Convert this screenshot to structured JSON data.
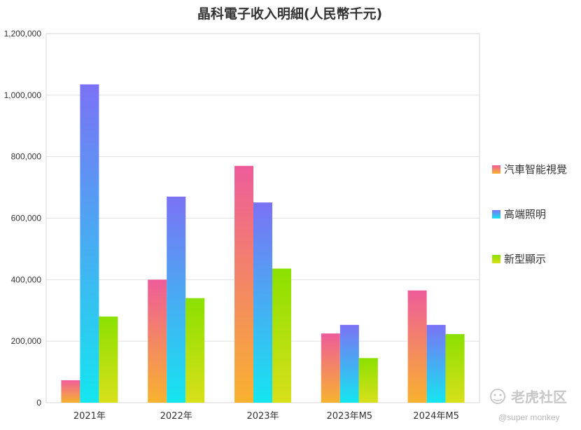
{
  "chart_data": {
    "type": "bar",
    "title": "晶科電子收入明細(人民幣千元)",
    "categories": [
      "2021年",
      "2022年",
      "2023年",
      "2023年M5",
      "2024年M5"
    ],
    "series": [
      {
        "name": "汽車智能視覺",
        "values": [
          73000,
          400000,
          770000,
          225000,
          365000
        ],
        "colors": {
          "top": "#ee5c9a",
          "bottom": "#f8b22f"
        }
      },
      {
        "name": "高端照明",
        "values": [
          1035000,
          670000,
          651000,
          253000,
          253000
        ],
        "colors": {
          "top": "#7b72f5",
          "bottom": "#14e6ef"
        }
      },
      {
        "name": "新型顯示",
        "values": [
          280000,
          340000,
          436000,
          145000,
          223000
        ],
        "colors": {
          "top": "#8be000",
          "bottom": "#d8e01a"
        }
      }
    ],
    "ylim": [
      0,
      1200000
    ],
    "yticks": [
      "0",
      "200,000",
      "400,000",
      "600,000",
      "800,000",
      "1,000,000",
      "1,200,000"
    ],
    "grid": true,
    "legend_position": "right"
  },
  "watermark": {
    "brand": "老虎社区",
    "user": "@super monkey"
  }
}
